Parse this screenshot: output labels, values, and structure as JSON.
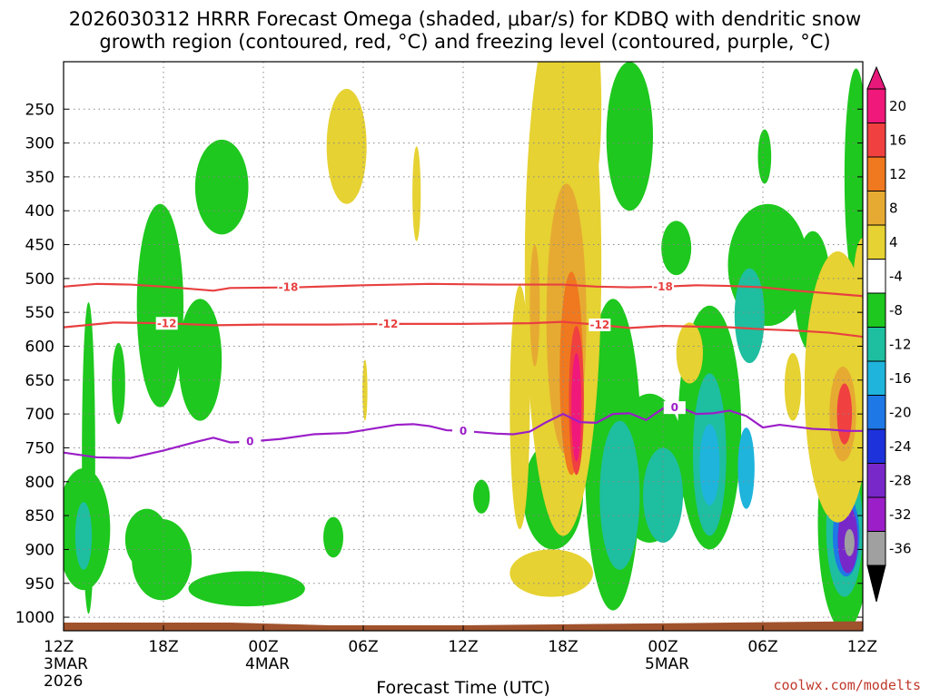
{
  "chart_data": {
    "type": "heatmap",
    "title_line1": "2026030312 HRRR Forecast Omega (shaded, μbar/s) for KDBQ with dendritic snow",
    "title_line2": "growth region (contoured, red, °C) and freezing level (contoured, purple, °C)",
    "xlabel": "Forecast Time (UTC)",
    "credit": "coolwx.com/modelts",
    "x_range_hours": [
      0,
      48
    ],
    "y_range_hpa": [
      1020,
      180
    ],
    "y_ticks": [
      250,
      300,
      350,
      400,
      450,
      500,
      550,
      600,
      650,
      700,
      750,
      800,
      850,
      900,
      950,
      1000
    ],
    "y_tick_labels": [
      "250",
      "300",
      "350",
      "400",
      "450",
      "500",
      "550",
      "600",
      "650",
      "700",
      "750",
      "800",
      "850",
      "900",
      "950",
      "1000"
    ],
    "x_ticks": [
      {
        "hour": 0,
        "label": "12Z",
        "sub1": "3MAR",
        "sub2": "2026"
      },
      {
        "hour": 6,
        "label": "18Z",
        "sub1": "",
        "sub2": ""
      },
      {
        "hour": 12,
        "label": "00Z",
        "sub1": "4MAR",
        "sub2": ""
      },
      {
        "hour": 18,
        "label": "06Z",
        "sub1": "",
        "sub2": ""
      },
      {
        "hour": 24,
        "label": "12Z",
        "sub1": "",
        "sub2": ""
      },
      {
        "hour": 30,
        "label": "18Z",
        "sub1": "",
        "sub2": ""
      },
      {
        "hour": 36,
        "label": "00Z",
        "sub1": "5MAR",
        "sub2": ""
      },
      {
        "hour": 42,
        "label": "06Z",
        "sub1": "",
        "sub2": ""
      },
      {
        "hour": 48,
        "label": "12Z",
        "sub1": "",
        "sub2": ""
      }
    ],
    "colorbar": {
      "labels": [
        "20",
        "16",
        "12",
        "8",
        "4",
        "-4",
        "-8",
        "-12",
        "-16",
        "-20",
        "-24",
        "-28",
        "-32",
        "-36"
      ],
      "colors": [
        "#f0187a",
        "#f04040",
        "#f0781e",
        "#e6aa32",
        "#e6d232",
        "#ffffff",
        "#1ec81e",
        "#1ebea0",
        "#1eb4dc",
        "#1e78e6",
        "#1e32dc",
        "#7828c8",
        "#9b1ec8",
        "#a0a0a0"
      ],
      "top_color": "#e6187a",
      "bottom_color": "#000000"
    },
    "colors": {
      "ground": "#a0522d",
      "dgz_contour": "#e84040",
      "freezing_contour": "#9b1ec8",
      "grid": "#888888"
    },
    "contours": [
      {
        "name": "dgz-minus18",
        "label": "-18",
        "color": "#e84040",
        "points": [
          [
            0,
            512
          ],
          [
            2,
            508
          ],
          [
            4,
            509
          ],
          [
            6,
            512
          ],
          [
            8,
            516
          ],
          [
            9,
            518
          ],
          [
            10,
            514
          ],
          [
            14,
            513
          ],
          [
            18,
            510
          ],
          [
            22,
            508
          ],
          [
            26,
            509
          ],
          [
            30,
            509
          ],
          [
            32,
            512
          ],
          [
            34,
            513
          ],
          [
            36,
            512
          ],
          [
            38,
            510
          ],
          [
            40,
            511
          ],
          [
            42,
            513
          ],
          [
            44,
            518
          ],
          [
            46,
            522
          ],
          [
            48,
            526
          ]
        ],
        "label_hours": [
          13.5,
          36.0
        ]
      },
      {
        "name": "dgz-minus12",
        "label": "-12",
        "color": "#e84040",
        "points": [
          [
            0,
            572
          ],
          [
            3,
            565
          ],
          [
            6,
            566
          ],
          [
            9,
            569
          ],
          [
            12,
            568
          ],
          [
            16,
            568
          ],
          [
            20,
            567
          ],
          [
            24,
            567
          ],
          [
            28,
            566
          ],
          [
            30,
            564
          ],
          [
            32,
            568
          ],
          [
            34,
            573
          ],
          [
            36,
            570
          ],
          [
            40,
            572
          ],
          [
            42,
            575
          ],
          [
            44,
            577
          ],
          [
            46,
            580
          ],
          [
            48,
            586
          ]
        ],
        "label_hours": [
          6.2,
          19.5,
          32.2
        ]
      },
      {
        "name": "freezing-level",
        "label": "0",
        "color": "#9b1ec8",
        "points": [
          [
            0,
            757
          ],
          [
            2,
            764
          ],
          [
            4,
            765
          ],
          [
            6,
            754
          ],
          [
            8,
            741
          ],
          [
            9,
            735
          ],
          [
            10,
            742
          ],
          [
            11,
            741
          ],
          [
            13,
            737
          ],
          [
            15,
            730
          ],
          [
            17,
            728
          ],
          [
            19,
            720
          ],
          [
            20,
            716
          ],
          [
            21,
            715
          ],
          [
            22,
            718
          ],
          [
            23,
            724
          ],
          [
            24,
            725
          ],
          [
            26,
            729
          ],
          [
            27,
            730
          ],
          [
            28,
            726
          ],
          [
            29,
            712
          ],
          [
            30,
            700
          ],
          [
            31,
            712
          ],
          [
            32,
            713
          ],
          [
            33,
            700
          ],
          [
            34,
            699
          ],
          [
            35,
            709
          ],
          [
            35.5,
            700
          ],
          [
            36,
            692
          ],
          [
            37,
            690
          ],
          [
            38,
            700
          ],
          [
            39,
            699
          ],
          [
            40,
            695
          ],
          [
            41,
            703
          ],
          [
            42,
            720
          ],
          [
            43,
            716
          ],
          [
            44,
            719
          ],
          [
            45,
            722
          ],
          [
            46,
            723
          ],
          [
            47,
            725
          ],
          [
            48,
            725
          ]
        ],
        "label_hours": [
          11.2,
          24.0,
          36.7
        ]
      }
    ],
    "omega_regions": [
      {
        "name": "up-4-a",
        "center": [
          1.5,
          765
        ],
        "radius": [
          0.4,
          230
        ],
        "value": -5
      },
      {
        "name": "up-4-b",
        "center": [
          3.3,
          655
        ],
        "radius": [
          0.4,
          60
        ],
        "value": -5
      },
      {
        "name": "up-4-c",
        "center": [
          1.2,
          870
        ],
        "radius": [
          1.6,
          90
        ],
        "value": -5
      },
      {
        "name": "up-8-a",
        "center": [
          1.2,
          880
        ],
        "radius": [
          0.5,
          50
        ],
        "value": -9
      },
      {
        "name": "up-4-d",
        "center": [
          5.0,
          885
        ],
        "radius": [
          1.3,
          45
        ],
        "value": -5
      },
      {
        "name": "up-4-e",
        "center": [
          5.8,
          540
        ],
        "radius": [
          1.4,
          150
        ],
        "value": -5
      },
      {
        "name": "up-4-f",
        "center": [
          5.9,
          915
        ],
        "radius": [
          1.8,
          60
        ],
        "value": -5
      },
      {
        "name": "up-4-g",
        "center": [
          8.2,
          620
        ],
        "radius": [
          1.3,
          90
        ],
        "value": -5
      },
      {
        "name": "up-4-h",
        "center": [
          9.5,
          365
        ],
        "radius": [
          1.6,
          70
        ],
        "value": -5
      },
      {
        "name": "up-4-i",
        "center": [
          11.0,
          958
        ],
        "radius": [
          3.5,
          26
        ],
        "value": -5
      },
      {
        "name": "up-4-j",
        "center": [
          16.2,
          882
        ],
        "radius": [
          0.6,
          30
        ],
        "value": -5
      },
      {
        "name": "up-4-k",
        "center": [
          25.1,
          822
        ],
        "radius": [
          0.5,
          25
        ],
        "value": -5
      },
      {
        "name": "up-4-l",
        "center": [
          27.8,
          575
        ],
        "radius": [
          0.6,
          30
        ],
        "value": -5
      },
      {
        "name": "up-4-m",
        "center": [
          29.4,
          820
        ],
        "radius": [
          1.8,
          80
        ],
        "value": -5
      },
      {
        "name": "up-4-n",
        "center": [
          33.0,
          760
        ],
        "radius": [
          1.7,
          230
        ],
        "value": -5
      },
      {
        "name": "up-4-o",
        "center": [
          34.0,
          290
        ],
        "radius": [
          1.4,
          110
        ],
        "value": -5
      },
      {
        "name": "up-4-p",
        "center": [
          35.2,
          780
        ],
        "radius": [
          2.2,
          110
        ],
        "value": -5
      },
      {
        "name": "up-4-q",
        "center": [
          36.8,
          455
        ],
        "radius": [
          0.9,
          40
        ],
        "value": -5
      },
      {
        "name": "up-4-r",
        "center": [
          38.8,
          720
        ],
        "radius": [
          1.9,
          180
        ],
        "value": -5
      },
      {
        "name": "up-4-s",
        "center": [
          42.1,
          320
        ],
        "radius": [
          0.4,
          40
        ],
        "value": -5
      },
      {
        "name": "up-4-t",
        "center": [
          42.3,
          480
        ],
        "radius": [
          2.4,
          90
        ],
        "value": -5
      },
      {
        "name": "up-4-u",
        "center": [
          45.0,
          520
        ],
        "radius": [
          1.1,
          90
        ],
        "value": -5
      },
      {
        "name": "up-4-v",
        "center": [
          47.6,
          350
        ],
        "radius": [
          0.7,
          160
        ],
        "value": -5
      },
      {
        "name": "up-4-w",
        "center": [
          46.9,
          860
        ],
        "radius": [
          1.6,
          160
        ],
        "value": -5
      },
      {
        "name": "up-8-b",
        "center": [
          33.4,
          820
        ],
        "radius": [
          1.2,
          110
        ],
        "value": -9
      },
      {
        "name": "up-8-c",
        "center": [
          38.8,
          760
        ],
        "radius": [
          1.0,
          120
        ],
        "value": -9
      },
      {
        "name": "up-8-d",
        "center": [
          36.0,
          820
        ],
        "radius": [
          1.2,
          70
        ],
        "value": -9
      },
      {
        "name": "up-8-e",
        "center": [
          41.2,
          555
        ],
        "radius": [
          0.9,
          70
        ],
        "value": -9
      },
      {
        "name": "up-8-f",
        "center": [
          46.9,
          870
        ],
        "radius": [
          1.1,
          100
        ],
        "value": -9
      },
      {
        "name": "up-12-a",
        "center": [
          38.8,
          775
        ],
        "radius": [
          0.6,
          60
        ],
        "value": -13
      },
      {
        "name": "up-12-b",
        "center": [
          41.0,
          780
        ],
        "radius": [
          0.5,
          60
        ],
        "value": -13
      },
      {
        "name": "up-16-a",
        "center": [
          47.0,
          880
        ],
        "radius": [
          0.8,
          60
        ],
        "value": -17
      },
      {
        "name": "up-24-a",
        "center": [
          47.1,
          885
        ],
        "radius": [
          0.6,
          50
        ],
        "value": -25
      },
      {
        "name": "up-32-a",
        "center": [
          47.2,
          890
        ],
        "radius": [
          0.3,
          20
        ],
        "value": -33
      },
      {
        "name": "dn-4-a",
        "center": [
          17.0,
          305
        ],
        "radius": [
          1.2,
          85
        ],
        "value": 5
      },
      {
        "name": "dn-4-b",
        "center": [
          21.2,
          375
        ],
        "radius": [
          0.25,
          70
        ],
        "value": 5
      },
      {
        "name": "dn-4-c",
        "center": [
          18.1,
          665
        ],
        "radius": [
          0.15,
          45
        ],
        "value": 5
      },
      {
        "name": "dn-4-d",
        "center": [
          30.0,
          480
        ],
        "radius": [
          2.3,
          400
        ],
        "value": 5
      },
      {
        "name": "dn-4-e",
        "center": [
          31.8,
          245
        ],
        "radius": [
          0.5,
          120
        ],
        "value": 5
      },
      {
        "name": "dn-4-f",
        "center": [
          29.3,
          935
        ],
        "radius": [
          2.5,
          35
        ],
        "value": 5
      },
      {
        "name": "dn-4-g",
        "center": [
          27.4,
          690
        ],
        "radius": [
          0.6,
          180
        ],
        "value": 5
      },
      {
        "name": "dn-4-h",
        "center": [
          37.6,
          610
        ],
        "radius": [
          0.8,
          45
        ],
        "value": 5
      },
      {
        "name": "dn-4-i",
        "center": [
          46.5,
          660
        ],
        "radius": [
          2.0,
          200
        ],
        "value": 5
      },
      {
        "name": "dn-4-j",
        "center": [
          43.8,
          660
        ],
        "radius": [
          0.5,
          50
        ],
        "value": 5
      },
      {
        "name": "dn-4-k",
        "center": [
          48.0,
          520
        ],
        "radius": [
          0.6,
          80
        ],
        "value": 5
      },
      {
        "name": "dn-8-a",
        "center": [
          30.2,
          560
        ],
        "radius": [
          1.2,
          200
        ],
        "value": 9
      },
      {
        "name": "dn-8-b",
        "center": [
          28.3,
          540
        ],
        "radius": [
          0.3,
          90
        ],
        "value": 9
      },
      {
        "name": "dn-8-c",
        "center": [
          46.8,
          700
        ],
        "radius": [
          0.8,
          70
        ],
        "value": 9
      },
      {
        "name": "dn-12-a",
        "center": [
          30.5,
          640
        ],
        "radius": [
          0.7,
          150
        ],
        "value": 13
      },
      {
        "name": "dn-16-a",
        "center": [
          30.8,
          680
        ],
        "radius": [
          0.45,
          110
        ],
        "value": 17
      },
      {
        "name": "dn-20-a",
        "center": [
          30.8,
          690
        ],
        "radius": [
          0.3,
          80
        ],
        "value": 21
      },
      {
        "name": "dn-16-b",
        "center": [
          46.9,
          700
        ],
        "radius": [
          0.45,
          45
        ],
        "value": 17
      }
    ]
  }
}
